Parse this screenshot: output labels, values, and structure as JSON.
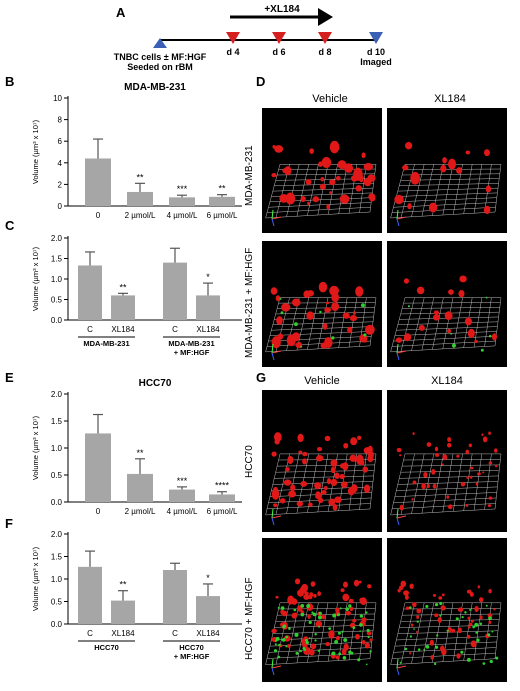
{
  "panel_letters": {
    "A": "A",
    "B": "B",
    "C": "C",
    "D": "D",
    "E": "E",
    "F": "F",
    "G": "G"
  },
  "timeline": {
    "drug_label": "+XL184",
    "seed_label_line1": "TNBC cells ± MF:HGF",
    "seed_label_line2": "Seeded on rBM",
    "doses": [
      "d 4",
      "d 6",
      "d 8"
    ],
    "end_label_line1": "d 10",
    "end_label_line2": "Imaged",
    "colors": {
      "seed": "#3a5fb5",
      "dose": "#d62020",
      "end": "#3a5fb5"
    }
  },
  "micro": {
    "col_vehicle": "Vehicle",
    "col_xl184": "XL184",
    "row_mda": "MDA-MB-231",
    "row_mda_hgf": "MDA-MB-231 + MF:HGF",
    "row_hcc": "HCC70",
    "row_hcc_hgf": "HCC70 + MF:HGF"
  },
  "chart_data": [
    {
      "id": "B",
      "type": "bar",
      "title": "MDA-MB-231",
      "ylabel": "Volume (µm³ x 10⁷)",
      "ylim": [
        0,
        10
      ],
      "yticks": [
        0,
        2,
        4,
        6,
        8,
        10
      ],
      "categories": [
        "0",
        "2 µmol/L",
        "4 µmol/L",
        "6 µmol/L"
      ],
      "values": [
        4.4,
        1.3,
        0.8,
        0.85
      ],
      "errors": [
        1.8,
        0.8,
        0.2,
        0.2
      ],
      "significance": [
        "",
        "**",
        "***",
        "**"
      ],
      "bar_color": "#a6a6a6"
    },
    {
      "id": "C",
      "type": "bar",
      "ylabel": "Volume (µm³ x 10⁷)",
      "ylim": [
        0,
        2.0
      ],
      "yticks": [
        0,
        0.5,
        1.0,
        1.5,
        2.0
      ],
      "categories": [
        "C",
        "XL184",
        "C",
        "XL184"
      ],
      "groups": [
        "MDA-MB-231",
        "MDA-MB-231 + MF:HGF"
      ],
      "values": [
        1.33,
        0.6,
        1.4,
        0.6
      ],
      "errors": [
        0.33,
        0.05,
        0.35,
        0.3
      ],
      "significance": [
        "",
        "**",
        "",
        "*"
      ],
      "bar_color": "#a6a6a6"
    },
    {
      "id": "E",
      "type": "bar",
      "title": "HCC70",
      "ylabel": "Volume (µm³ x 10⁷)",
      "ylim": [
        0,
        2.0
      ],
      "yticks": [
        0,
        0.5,
        1.0,
        1.5,
        2.0
      ],
      "categories": [
        "0",
        "2 µmol/L",
        "4 µmol/L",
        "6 µmol/L"
      ],
      "values": [
        1.27,
        0.52,
        0.23,
        0.14
      ],
      "errors": [
        0.35,
        0.28,
        0.05,
        0.05
      ],
      "significance": [
        "",
        "**",
        "***",
        "****"
      ],
      "bar_color": "#a6a6a6"
    },
    {
      "id": "F",
      "type": "bar",
      "ylabel": "Volume (µm³ x 10⁷)",
      "ylim": [
        0,
        2.0
      ],
      "yticks": [
        0,
        0.5,
        1.0,
        1.5,
        2.0
      ],
      "categories": [
        "C",
        "XL184",
        "C",
        "XL184"
      ],
      "groups": [
        "HCC70",
        "HCC70 + MF:HGF"
      ],
      "values": [
        1.27,
        0.52,
        1.2,
        0.62
      ],
      "errors": [
        0.35,
        0.22,
        0.15,
        0.27
      ],
      "significance": [
        "",
        "**",
        "",
        "*"
      ],
      "bar_color": "#a6a6a6"
    }
  ]
}
